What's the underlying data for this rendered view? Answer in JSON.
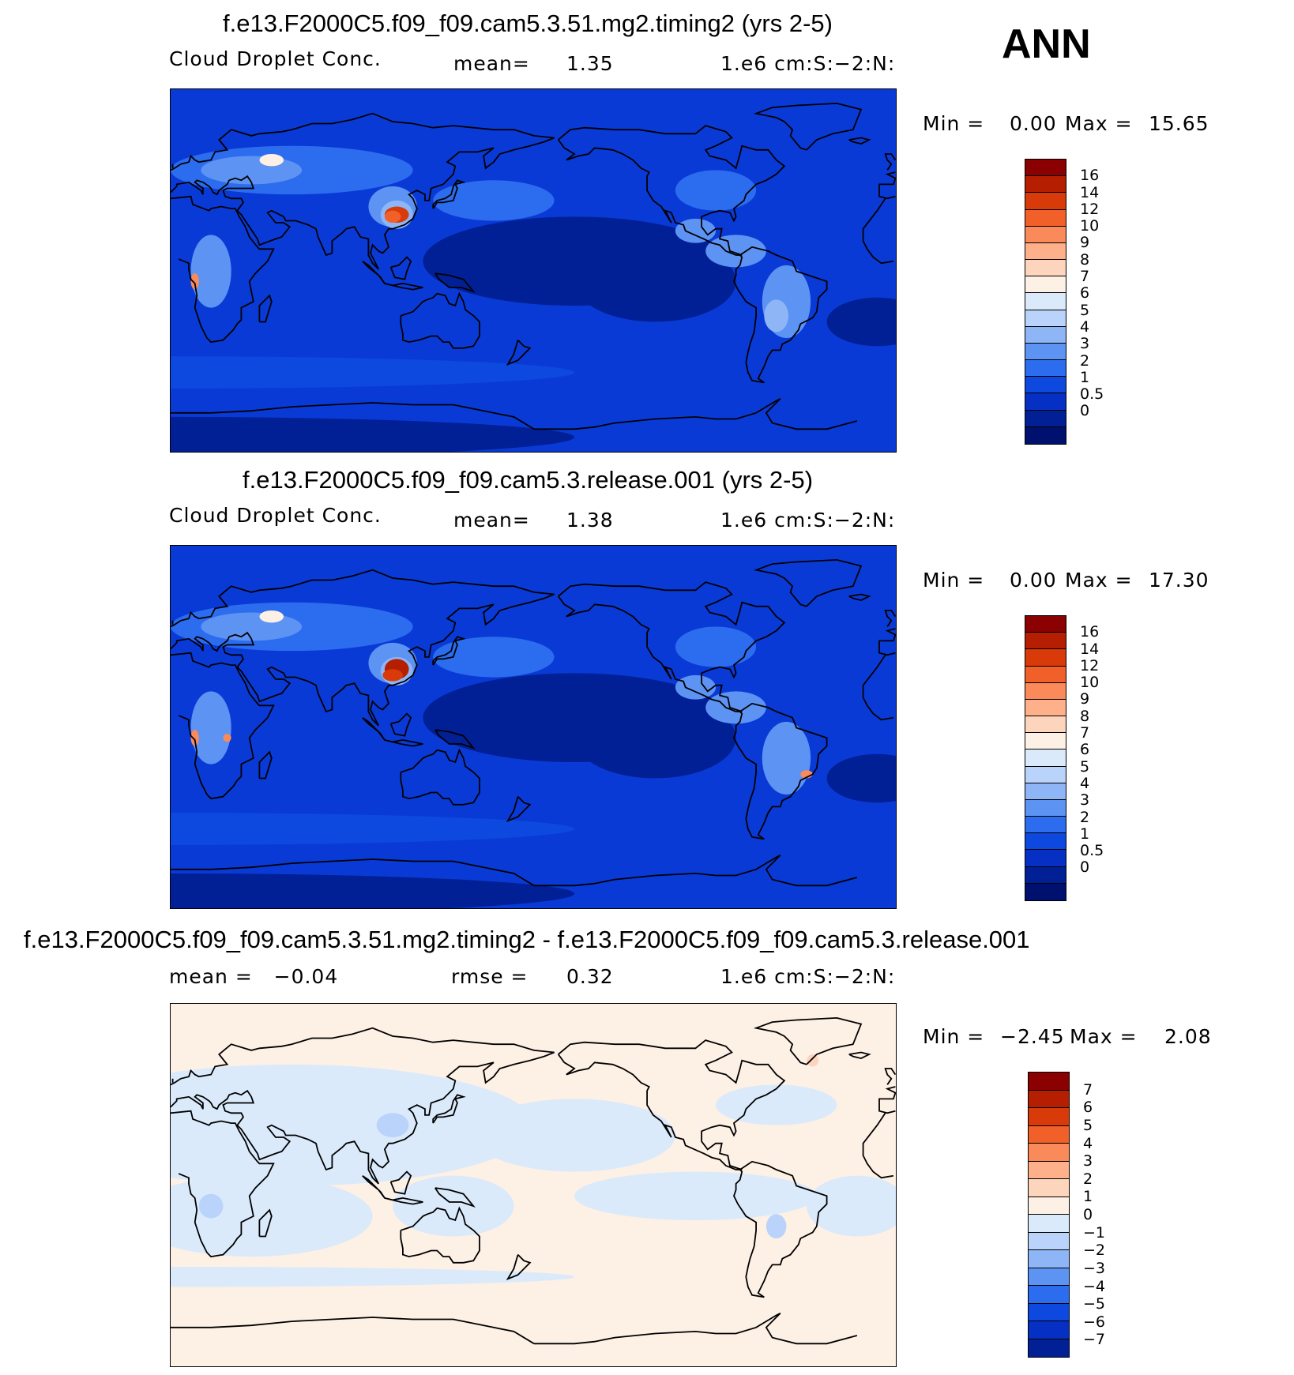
{
  "season": "ANN",
  "panels": [
    {
      "title": "f.e13.F2000C5.f09_f09.cam5.3.51.mg2.timing2 (yrs 2-5)",
      "left_label": "Cloud Droplet Conc.",
      "stat_label": "mean=",
      "stat_value": "1.35",
      "units": "1.e6 cm:S:−2:N:",
      "min_label": "Min =",
      "min_value": "0.00",
      "max_label": "Max =",
      "max_value": "15.65",
      "colorbar": {
        "colors": [
          "#8b0000",
          "#b51e00",
          "#d93a0a",
          "#f2602a",
          "#fa8a5a",
          "#fdb08a",
          "#fdd5bd",
          "#fdf0e5",
          "#daeafb",
          "#b9d3fa",
          "#8eb6f7",
          "#5d93f3",
          "#2c6cee",
          "#0d48df",
          "#0630c3",
          "#022096",
          "#00106e"
        ],
        "labels": [
          "16",
          "14",
          "12",
          "10",
          "9",
          "8",
          "7",
          "6",
          "5",
          "4",
          "3",
          "2",
          "1",
          "0.5",
          "0"
        ]
      }
    },
    {
      "title": "f.e13.F2000C5.f09_f09.cam5.3.release.001 (yrs 2-5)",
      "left_label": "Cloud Droplet Conc.",
      "stat_label": "mean=",
      "stat_value": "1.38",
      "units": "1.e6 cm:S:−2:N:",
      "min_label": "Min =",
      "min_value": "0.00",
      "max_label": "Max =",
      "max_value": "17.30",
      "colorbar": {
        "colors": [
          "#8b0000",
          "#b51e00",
          "#d93a0a",
          "#f2602a",
          "#fa8a5a",
          "#fdb08a",
          "#fdd5bd",
          "#fdf0e5",
          "#daeafb",
          "#b9d3fa",
          "#8eb6f7",
          "#5d93f3",
          "#2c6cee",
          "#0d48df",
          "#0630c3",
          "#022096",
          "#00106e"
        ],
        "labels": [
          "16",
          "14",
          "12",
          "10",
          "9",
          "8",
          "7",
          "6",
          "5",
          "4",
          "3",
          "2",
          "1",
          "0.5",
          "0"
        ]
      }
    },
    {
      "title": "f.e13.F2000C5.f09_f09.cam5.3.51.mg2.timing2 - f.e13.F2000C5.f09_f09.cam5.3.release.001",
      "left_label": "mean =   −0.04",
      "stat_label": "rmse =",
      "stat_value": "0.32",
      "units": "1.e6 cm:S:−2:N:",
      "min_label": "Min =",
      "min_value": "−2.45",
      "max_label": "Max =",
      "max_value": "2.08",
      "colorbar": {
        "colors": [
          "#8b0000",
          "#b51e00",
          "#d93a0a",
          "#f2602a",
          "#fa8a5a",
          "#fdb08a",
          "#fdd5bd",
          "#fdf0e5",
          "#daeafb",
          "#b9d3fa",
          "#8eb6f7",
          "#5d93f3",
          "#2c6cee",
          "#0d48df",
          "#0630c3",
          "#022096"
        ],
        "labels": [
          "7",
          "6",
          "5",
          "4",
          "3",
          "2",
          "1",
          "0",
          "−1",
          "−2",
          "−3",
          "−4",
          "−5",
          "−6",
          "−7"
        ]
      }
    }
  ]
}
